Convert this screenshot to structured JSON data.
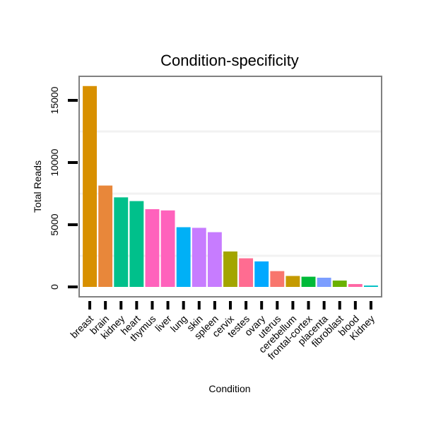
{
  "chart_data": {
    "type": "bar",
    "title": "Condition-specificity",
    "xlabel": "Condition",
    "ylabel": "Total Reads",
    "ylim": [
      -1000,
      17000
    ],
    "yticks": [
      0,
      5000,
      10000,
      15000
    ],
    "ytick_labels": [
      "0",
      "5000",
      "10000",
      "15000"
    ],
    "categories": [
      "breast",
      "brain",
      "kidney",
      "heart",
      "thymus",
      "liver",
      "lung",
      "skin",
      "spleen",
      "cervix",
      "testes",
      "ovary",
      "uterus",
      "cerebellum",
      "frontal-cortex",
      "placenta",
      "fibroblast",
      "blood",
      "Kidney"
    ],
    "values": [
      16150,
      8150,
      7200,
      6900,
      6250,
      6150,
      4800,
      4750,
      4400,
      2850,
      2300,
      2050,
      1270,
      880,
      820,
      740,
      510,
      230,
      110
    ],
    "colors": [
      "#D89000",
      "#E8873A",
      "#00C08B",
      "#00C08B",
      "#FF62BC",
      "#FF62BC",
      "#00B0F6",
      "#C77CFF",
      "#C77CFF",
      "#A3A500",
      "#FF6C91",
      "#00A9FF",
      "#F8766D",
      "#C49A00",
      "#00BA38",
      "#7C9EFF",
      "#6BB100",
      "#FF67A4",
      "#00BFC4"
    ],
    "grid": "horizontal",
    "legend": "none"
  }
}
